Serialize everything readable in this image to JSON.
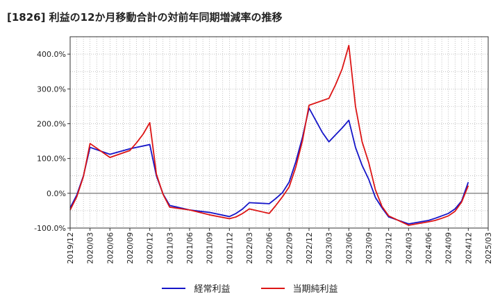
{
  "chart_data": {
    "type": "line",
    "title": "[1826]  利益の12か月移動合計の対前年同期増減率の推移",
    "xlabel": "",
    "ylabel": "",
    "ylim": [
      -100,
      450
    ],
    "yticks": [
      -100,
      0,
      100,
      200,
      300,
      400
    ],
    "ytick_labels": [
      "-100.0%",
      "0.0%",
      "100.0%",
      "200.0%",
      "300.0%",
      "400.0%"
    ],
    "xticks": [
      "2019/12",
      "2020/03",
      "2020/06",
      "2020/09",
      "2020/12",
      "2021/03",
      "2021/06",
      "2021/09",
      "2021/12",
      "2022/03",
      "2022/06",
      "2022/09",
      "2022/12",
      "2023/03",
      "2023/06",
      "2023/09",
      "2023/12",
      "2024/03",
      "2024/06",
      "2024/09",
      "2024/12",
      "2025/03"
    ],
    "grid": true,
    "legend_position": "bottom",
    "series": [
      {
        "name": "経常利益",
        "color": "#1414c8",
        "x": [
          "2019/12",
          "2020/01",
          "2020/02",
          "2020/03",
          "2020/06",
          "2020/09",
          "2020/12",
          "2021/01",
          "2021/02",
          "2021/03",
          "2021/06",
          "2021/09",
          "2021/12",
          "2022/01",
          "2022/02",
          "2022/03",
          "2022/06",
          "2022/07",
          "2022/08",
          "2022/09",
          "2022/10",
          "2022/11",
          "2022/12",
          "2023/01",
          "2023/02",
          "2023/03",
          "2023/04",
          "2023/05",
          "2023/06",
          "2023/07",
          "2023/08",
          "2023/09",
          "2023/10",
          "2023/11",
          "2023/12",
          "2024/03",
          "2024/06",
          "2024/07",
          "2024/08",
          "2024/09",
          "2024/10",
          "2024/11",
          "2024/12"
        ],
        "values": [
          -42,
          -5,
          50,
          132,
          112,
          128,
          140,
          50,
          -2,
          -35,
          -48,
          -55,
          -67,
          -58,
          -45,
          -27,
          -30,
          -15,
          2,
          32,
          90,
          160,
          245,
          210,
          175,
          148,
          168,
          188,
          210,
          132,
          80,
          40,
          -12,
          -42,
          -68,
          -88,
          -78,
          -72,
          -65,
          -58,
          -45,
          -22,
          32
        ]
      },
      {
        "name": "当期純利益",
        "color": "#dc1414",
        "x": [
          "2019/12",
          "2020/01",
          "2020/02",
          "2020/03",
          "2020/06",
          "2020/09",
          "2020/10",
          "2020/11",
          "2020/12",
          "2021/01",
          "2021/02",
          "2021/03",
          "2021/06",
          "2021/09",
          "2021/12",
          "2022/01",
          "2022/02",
          "2022/03",
          "2022/06",
          "2022/07",
          "2022/08",
          "2022/09",
          "2022/10",
          "2022/11",
          "2022/12",
          "2023/03",
          "2023/04",
          "2023/05",
          "2023/06",
          "2023/07",
          "2023/08",
          "2023/09",
          "2023/10",
          "2023/11",
          "2023/12",
          "2024/03",
          "2024/06",
          "2024/07",
          "2024/08",
          "2024/09",
          "2024/10",
          "2024/11",
          "2024/12"
        ],
        "values": [
          -48,
          -10,
          48,
          143,
          103,
          123,
          145,
          170,
          203,
          55,
          -3,
          -40,
          -48,
          -62,
          -73,
          -68,
          -58,
          -45,
          -58,
          -35,
          -10,
          18,
          75,
          150,
          253,
          273,
          312,
          358,
          425,
          250,
          148,
          88,
          10,
          -38,
          -65,
          -92,
          -82,
          -78,
          -72,
          -65,
          -52,
          -25,
          22
        ]
      }
    ]
  },
  "legend": {
    "item1": "経常利益",
    "item2": "当期純利益"
  }
}
